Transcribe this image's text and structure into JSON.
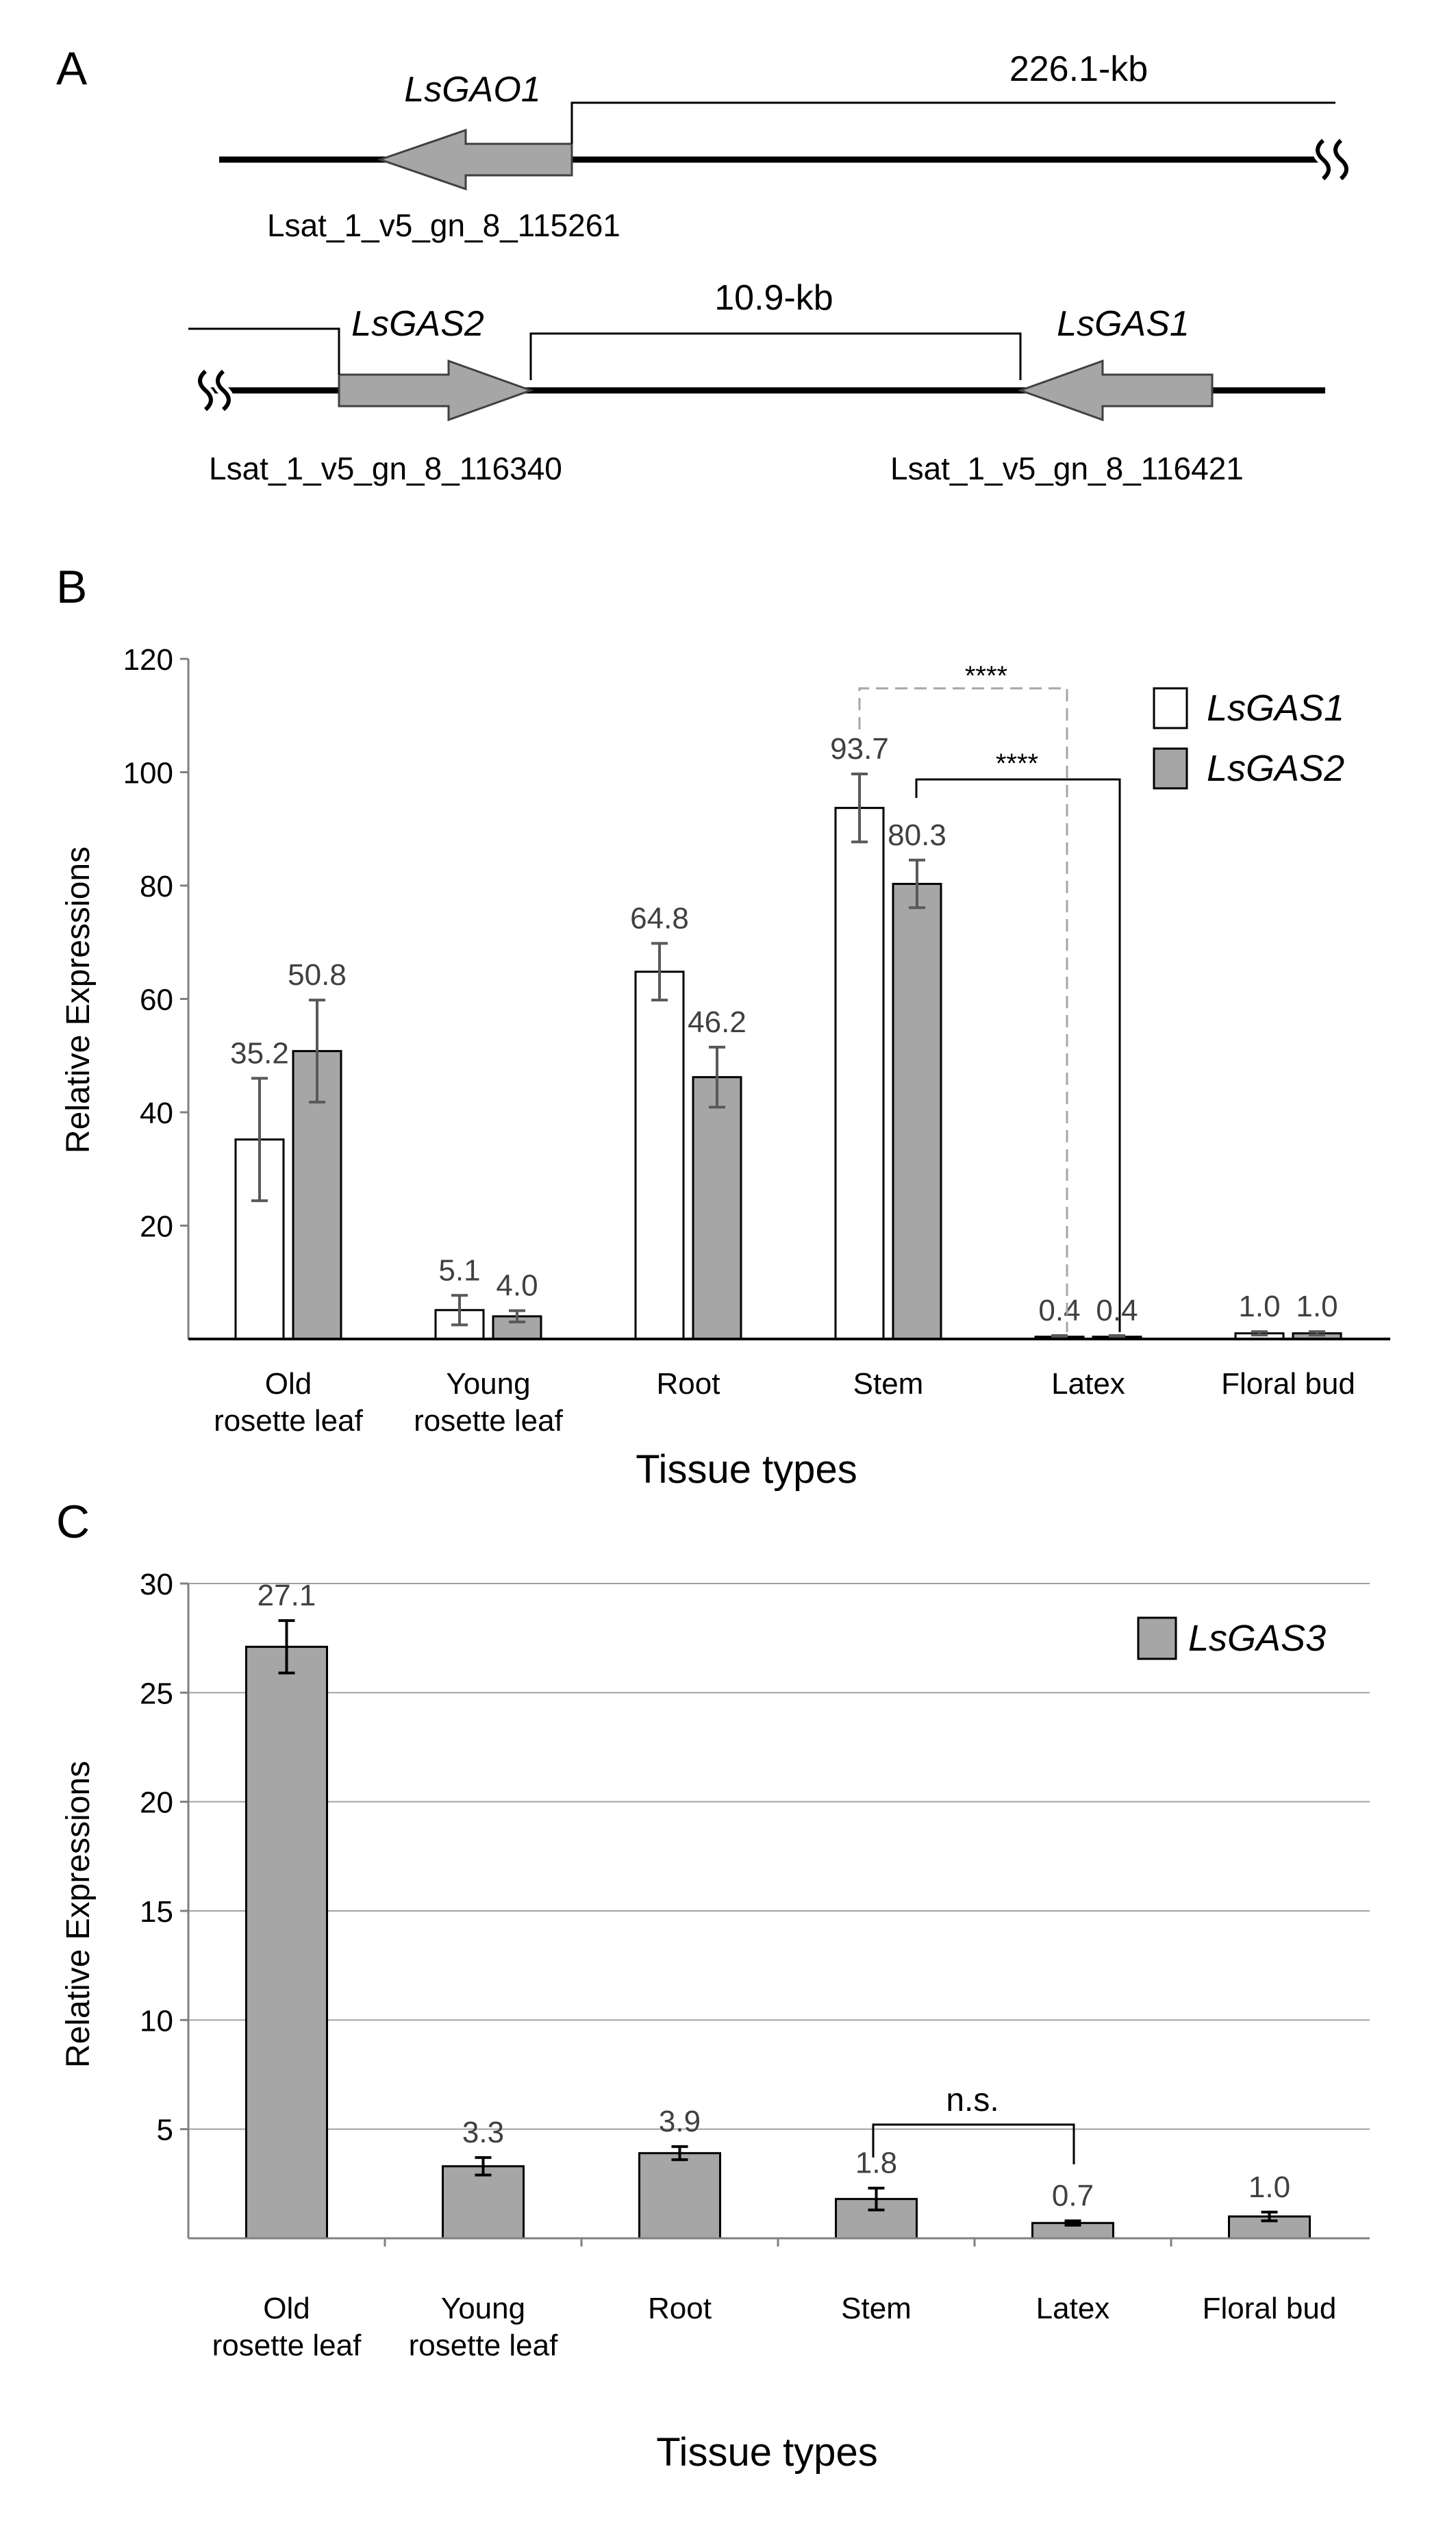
{
  "panel_a": {
    "label": "A",
    "gao1": {
      "name": "LsGAO1",
      "id": "Lsat_1_v5_gn_8_115261"
    },
    "distance1": "226.1-kb",
    "gas2": {
      "name": "LsGAS2",
      "id": "Lsat_1_v5_gn_8_116340"
    },
    "gas1": {
      "name": "LsGAS1",
      "id": "Lsat_1_v5_gn_8_116421"
    },
    "distance2": "10.9-kb"
  },
  "colors": {
    "white": "#ffffff",
    "gray": "#a6a6a6",
    "axis": "#000000",
    "label_text": "#404040",
    "grid": "#a0a0a0",
    "error": "#595959"
  },
  "chart_data": [
    {
      "panel": "B",
      "type": "bar",
      "ylabel": "Relative Expressions",
      "xlabel": "Tissue types",
      "ylim": [
        0,
        120
      ],
      "yticks": [
        "20",
        "40",
        "60",
        "80",
        "100",
        "120"
      ],
      "categories": [
        [
          "Old",
          "rosette leaf"
        ],
        [
          "Young",
          "rosette leaf"
        ],
        [
          "Root"
        ],
        [
          "Stem"
        ],
        [
          "Latex"
        ],
        [
          "Floral bud"
        ]
      ],
      "series": [
        {
          "name": "LsGAS1",
          "values": [
            35.2,
            5.1,
            64.8,
            93.7,
            0.4,
            1.0
          ],
          "errors": [
            10.8,
            2.6,
            5.0,
            6.0,
            0.2,
            0.3
          ],
          "labels": [
            "35.2",
            "5.1",
            "64.8",
            "93.7",
            "0.4",
            "1.0"
          ]
        },
        {
          "name": "LsGAS2",
          "values": [
            50.8,
            4.0,
            46.2,
            80.3,
            0.4,
            1.0
          ],
          "errors": [
            9.0,
            1.0,
            5.3,
            4.2,
            0.2,
            0.3
          ],
          "labels": [
            "50.8",
            "4.0",
            "46.2",
            "80.3",
            "0.4",
            "1.0"
          ]
        }
      ],
      "significance": [
        "****",
        "****"
      ],
      "legend_position": "top-right"
    },
    {
      "panel": "C",
      "type": "bar",
      "ylabel": "Relative Expressions",
      "xlabel": "Tissue types",
      "ylim": [
        0,
        30
      ],
      "yticks": [
        "5",
        "10",
        "15",
        "20",
        "25",
        "30"
      ],
      "grid": true,
      "categories": [
        [
          "Old",
          "rosette leaf"
        ],
        [
          "Young",
          "rosette leaf"
        ],
        [
          "Root"
        ],
        [
          "Stem"
        ],
        [
          "Latex"
        ],
        [
          "Floral bud"
        ]
      ],
      "series": [
        {
          "name": "LsGAS3",
          "values": [
            27.1,
            3.3,
            3.9,
            1.8,
            0.7,
            1.0
          ],
          "errors": [
            1.2,
            0.4,
            0.3,
            0.5,
            0.1,
            0.2
          ],
          "labels": [
            "27.1",
            "3.3",
            "3.9",
            "1.8",
            "0.7",
            "1.0"
          ]
        }
      ],
      "significance": [
        "n.s."
      ],
      "legend_position": "top-right"
    }
  ]
}
